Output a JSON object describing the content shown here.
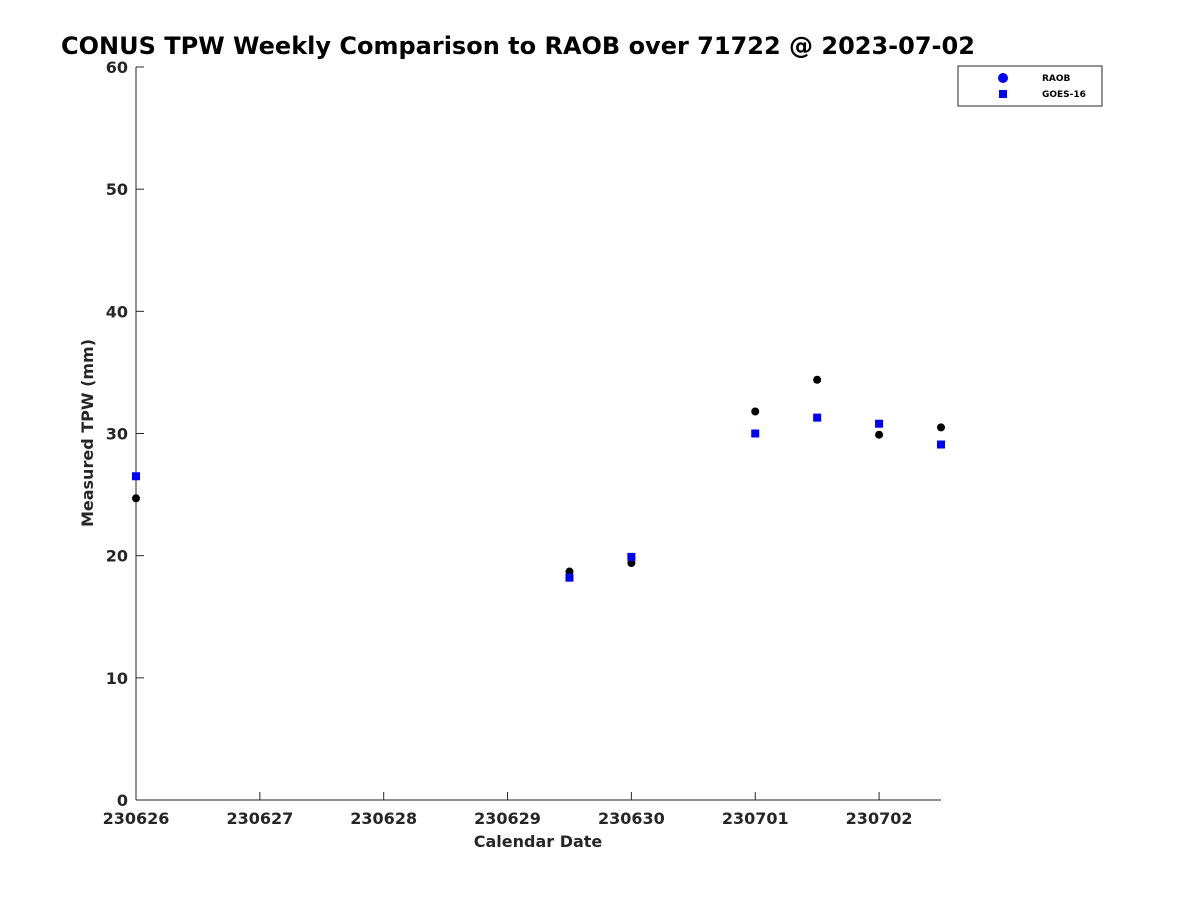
{
  "chart_data": {
    "type": "scatter",
    "title": "CONUS TPW Weekly Comparison to RAOB over 71722 @ 2023-07-02",
    "xlabel": "Calendar Date",
    "ylabel": "Measured TPW (mm)",
    "x_tick_labels": [
      "230626",
      "230627",
      "230628",
      "230629",
      "230630",
      "230701",
      "230702"
    ],
    "xlim": [
      "2023-06-26 00:00",
      "2023-07-02 12:00"
    ],
    "ylim": [
      0,
      60
    ],
    "y_ticks": [
      0,
      10,
      20,
      30,
      40,
      50,
      60
    ],
    "grid": false,
    "legend_position": "top-right",
    "series": [
      {
        "name": "RAOB",
        "marker": "circle",
        "color": "#000000",
        "legend_color": "#0000ff",
        "points": [
          {
            "x": "2023-06-26 00:00",
            "y": 24.7
          },
          {
            "x": "2023-06-29 12:00",
            "y": 18.7
          },
          {
            "x": "2023-06-30 00:00",
            "y": 19.4
          },
          {
            "x": "2023-07-01 00:00",
            "y": 31.8
          },
          {
            "x": "2023-07-01 12:00",
            "y": 34.4
          },
          {
            "x": "2023-07-02 00:00",
            "y": 29.9
          },
          {
            "x": "2023-07-02 12:00",
            "y": 30.5
          }
        ]
      },
      {
        "name": "GOES-16",
        "marker": "square",
        "color": "#0000ff",
        "legend_color": "#0000ff",
        "points": [
          {
            "x": "2023-06-26 00:00",
            "y": 26.5
          },
          {
            "x": "2023-06-29 12:00",
            "y": 18.2
          },
          {
            "x": "2023-06-30 00:00",
            "y": 19.9
          },
          {
            "x": "2023-07-01 00:00",
            "y": 30.0
          },
          {
            "x": "2023-07-01 12:00",
            "y": 31.3
          },
          {
            "x": "2023-07-02 00:00",
            "y": 30.8
          },
          {
            "x": "2023-07-02 12:00",
            "y": 29.1
          }
        ]
      }
    ]
  }
}
